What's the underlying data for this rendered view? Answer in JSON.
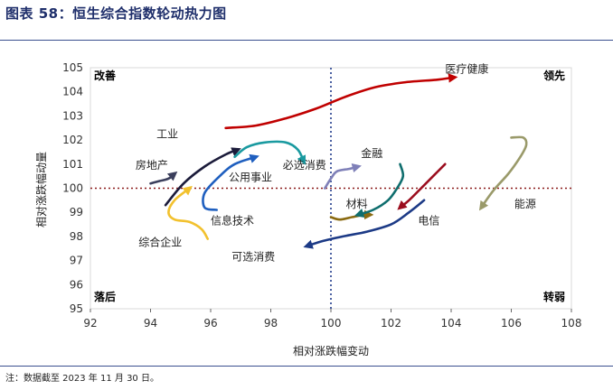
{
  "figure": {
    "title": "图表 58：恒生综合指数轮动热力图",
    "note": "注：数据截至 2023 年 11 月 30 日。"
  },
  "chart_data": {
    "type": "line",
    "title": "",
    "xlabel": "相对涨跌幅变动",
    "ylabel": "相对涨跌幅动量",
    "xlim": [
      92,
      108
    ],
    "ylim": [
      95,
      105
    ],
    "xticks": [
      92,
      94,
      96,
      98,
      100,
      102,
      104,
      106,
      108
    ],
    "yticks": [
      95,
      96,
      97,
      98,
      99,
      100,
      101,
      102,
      103,
      104,
      105
    ],
    "reference_lines": {
      "x": 100,
      "y": 100
    },
    "quadrants": {
      "top_left": "改善",
      "top_right": "领先",
      "bottom_left": "落后",
      "bottom_right": "转弱"
    },
    "series": [
      {
        "name": "医疗健康",
        "color": "#c00000",
        "points": [
          [
            96.5,
            102.5
          ],
          [
            97.5,
            102.6
          ],
          [
            98.5,
            102.9
          ],
          [
            99.5,
            103.3
          ],
          [
            100.5,
            103.8
          ],
          [
            101.5,
            104.2
          ],
          [
            102.5,
            104.4
          ],
          [
            103.5,
            104.5
          ],
          [
            104.1,
            104.6
          ]
        ],
        "label": {
          "x": 103.8,
          "y": 104.8
        }
      },
      {
        "name": "工业",
        "color": "#1b1b3a",
        "points": [
          [
            94.5,
            99.3
          ],
          [
            95.1,
            100.2
          ],
          [
            95.8,
            100.9
          ],
          [
            96.5,
            101.4
          ],
          [
            96.9,
            101.6
          ]
        ],
        "label": {
          "x": 94.2,
          "y": 102.1
        }
      },
      {
        "name": "房地产",
        "color": "#3b3f5c",
        "points": [
          [
            94,
            100.2
          ],
          [
            94.3,
            100.3
          ],
          [
            94.6,
            100.4
          ],
          [
            94.8,
            100.6
          ]
        ],
        "label": {
          "x": 93.5,
          "y": 100.8
        }
      },
      {
        "name": "综合企业",
        "color": "#f2c12e",
        "points": [
          [
            95.9,
            97.9
          ],
          [
            95.7,
            98.3
          ],
          [
            95.3,
            98.6
          ],
          [
            94.8,
            98.7
          ],
          [
            94.6,
            99.0
          ],
          [
            94.8,
            99.5
          ],
          [
            95.3,
            100.0
          ]
        ],
        "label": {
          "x": 93.6,
          "y": 97.6
        }
      },
      {
        "name": "公用事业",
        "color": "#1f5fbf",
        "points": [
          [
            96.2,
            99.1
          ],
          [
            95.8,
            99.2
          ],
          [
            95.8,
            99.8
          ],
          [
            96.3,
            100.5
          ],
          [
            96.8,
            101.0
          ],
          [
            97.5,
            101.3
          ]
        ],
        "label": {
          "x": 96.6,
          "y": 100.3
        }
      },
      {
        "name": "必选消费",
        "color": "#1a9aa0",
        "points": [
          [
            96.8,
            101.3
          ],
          [
            97.2,
            101.7
          ],
          [
            97.8,
            101.9
          ],
          [
            98.5,
            101.9
          ],
          [
            98.9,
            101.6
          ],
          [
            99.1,
            101.1
          ]
        ],
        "label": {
          "x": 98.4,
          "y": 100.8
        }
      },
      {
        "name": "金融",
        "color": "#7f80b8",
        "points": [
          [
            99.8,
            100.0
          ],
          [
            100.0,
            100.4
          ],
          [
            100.2,
            100.7
          ],
          [
            100.6,
            100.8
          ],
          [
            100.9,
            100.9
          ]
        ],
        "label": {
          "x": 101.0,
          "y": 101.3
        }
      },
      {
        "name": "信息技术",
        "color": "#8a6a10",
        "points": [
          [
            100.0,
            98.8
          ],
          [
            100.3,
            98.7
          ],
          [
            100.7,
            98.8
          ],
          [
            101.1,
            98.9
          ],
          [
            101.3,
            98.9
          ]
        ],
        "label": {
          "x": 96.0,
          "y": 98.5
        }
      },
      {
        "name": "材料",
        "color": "#0f6e6e",
        "points": [
          [
            102.3,
            101.0
          ],
          [
            102.4,
            100.5
          ],
          [
            102.2,
            100.0
          ],
          [
            101.9,
            99.5
          ],
          [
            101.4,
            99.1
          ],
          [
            100.9,
            98.9
          ]
        ],
        "label": {
          "x": 100.5,
          "y": 99.2
        }
      },
      {
        "name": "电信",
        "color": "#9b0d1e",
        "points": [
          [
            103.8,
            101.0
          ],
          [
            103.4,
            100.5
          ],
          [
            103.0,
            100.0
          ],
          [
            102.6,
            99.5
          ],
          [
            102.3,
            99.2
          ]
        ],
        "label": {
          "x": 102.9,
          "y": 98.5
        }
      },
      {
        "name": "能源",
        "color": "#9a9a6a",
        "points": [
          [
            106.0,
            102.1
          ],
          [
            106.4,
            102.1
          ],
          [
            106.5,
            101.8
          ],
          [
            106.3,
            101.3
          ],
          [
            105.9,
            100.6
          ],
          [
            105.4,
            99.9
          ],
          [
            105.0,
            99.2
          ]
        ],
        "label": {
          "x": 106.1,
          "y": 99.2
        }
      },
      {
        "name": "可选消费",
        "color": "#1c3a86",
        "points": [
          [
            103.1,
            99.5
          ],
          [
            102.6,
            99.0
          ],
          [
            102.0,
            98.5
          ],
          [
            101.2,
            98.2
          ],
          [
            100.4,
            98.0
          ],
          [
            99.7,
            97.8
          ],
          [
            99.2,
            97.6
          ]
        ],
        "label": {
          "x": 96.7,
          "y": 97.0
        }
      }
    ]
  }
}
